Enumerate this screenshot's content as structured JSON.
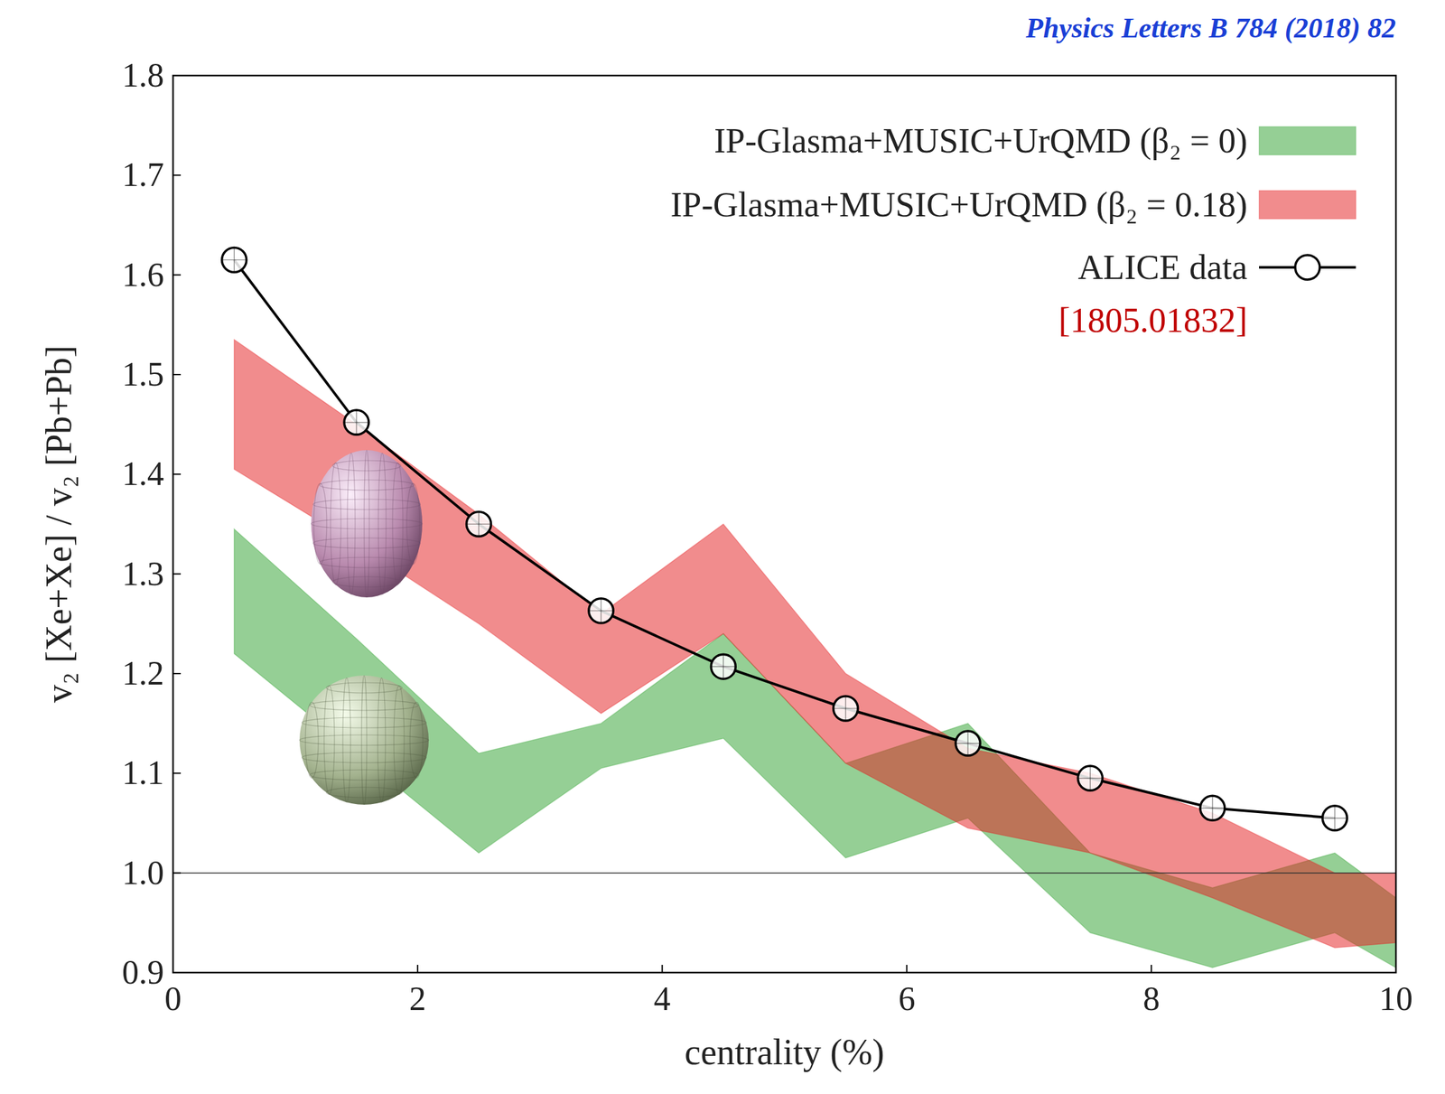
{
  "chart_data": {
    "type": "line",
    "title": "Physics Letters B 784 (2018) 82",
    "x_label": "centrality (%)",
    "y_label": "v₂ [Xe+Xe] / v₂ [Pb+Pb]",
    "xlim": [
      0,
      10
    ],
    "ylim": [
      0.9,
      1.8
    ],
    "xticks": [
      0,
      2,
      4,
      6,
      8,
      10
    ],
    "yticks": [
      0.9,
      {
        "value": 1,
        "label": "1.0"
      },
      1.1,
      1.2,
      1.3,
      1.4,
      1.5,
      1.6,
      1.7,
      1.8
    ],
    "reference_line": 1,
    "legend": "upper right",
    "grid": false,
    "series": [
      {
        "name": "IP-Glasma+MUSIC+UrQMD (β₂ = 0)",
        "type": "band",
        "color": "#2ca02c",
        "x": [
          0.5,
          1.5,
          2.5,
          3.5,
          4.5,
          5.5,
          6.5,
          7.5,
          8.5,
          9.5,
          10
        ],
        "lower": [
          1.22,
          1.12,
          1.02,
          1.105,
          1.135,
          1.015,
          1.055,
          0.94,
          0.905,
          0.94,
          0.905
        ],
        "upper": [
          1.345,
          1.235,
          1.12,
          1.15,
          1.24,
          1.11,
          1.15,
          1.02,
          0.985,
          1.02,
          0.975
        ]
      },
      {
        "name": "IP-Glasma+MUSIC+UrQMD (β₂ = 0.18)",
        "type": "band",
        "color": "#e41a1c",
        "x": [
          0.5,
          1.5,
          2.5,
          3.5,
          4.5,
          5.5,
          6.5,
          7.5,
          8.5,
          9.5,
          10
        ],
        "lower": [
          1.405,
          1.33,
          1.25,
          1.16,
          1.24,
          1.11,
          1.045,
          1.02,
          0.975,
          0.925,
          0.93
        ],
        "upper": [
          1.535,
          1.45,
          1.36,
          1.26,
          1.35,
          1.2,
          1.125,
          1.1,
          1.06,
          1.0,
          1.0
        ]
      },
      {
        "name": "ALICE data",
        "type": "line",
        "color": "#000000",
        "marker": "circle",
        "x": [
          0.5,
          1.5,
          2.5,
          3.5,
          4.5,
          5.5,
          6.5,
          7.5,
          8.5,
          9.5
        ],
        "values": [
          1.615,
          1.452,
          1.35,
          1.263,
          1.207,
          1.165,
          1.13,
          1.095,
          1.065,
          1.055
        ]
      }
    ],
    "annotations": [
      {
        "text": "[1805.01832]",
        "color": "#c00000"
      }
    ]
  }
}
